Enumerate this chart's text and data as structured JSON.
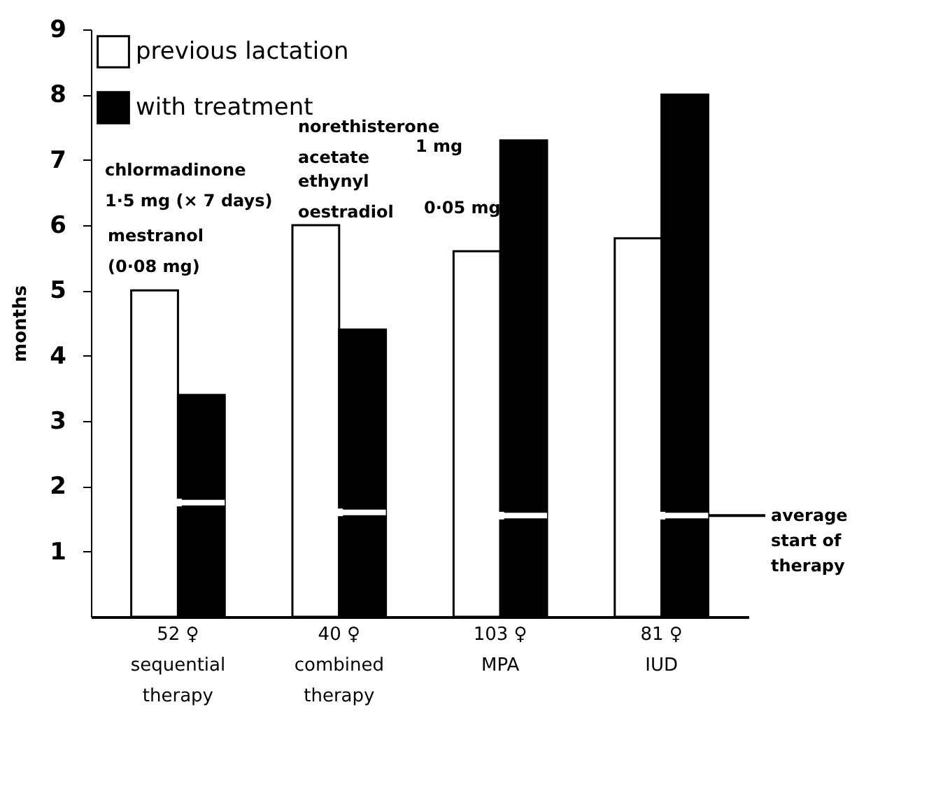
{
  "chart_data": {
    "type": "bar",
    "ylabel": "months",
    "categories": [
      "52 ♀\nsequential\ntherapy",
      "40 ♀\ncombined\ntherapy",
      "103 ♀\nMPA",
      "81 ♀\nIUD"
    ],
    "series": [
      {
        "name": "previous lactation",
        "color": "#ffffff",
        "values": [
          5.0,
          6.0,
          5.6,
          5.8
        ]
      },
      {
        "name": "with treatment",
        "color": "#000000",
        "values": [
          3.4,
          4.4,
          7.3,
          8.0
        ]
      },
      {
        "type": "scatter",
        "color": "#ffffff",
        "values": [
          1.75,
          1.6,
          1.55,
          1.55
        ]
      }
    ],
    "ylim": [
      0,
      9
    ],
    "yticks": [
      1,
      2,
      3,
      4,
      5,
      6,
      7,
      8,
      9
    ],
    "grid": false,
    "legend": "top left",
    "annotations": [
      "chlormadinone\n1·5 mg (× 7 days)",
      "mestranol\n(0·08 mg)",
      "norethisterone\nacetate",
      "1 mg",
      "ethynyl\noestradiol",
      "0·05 mg",
      {
        "text": "average\nstart of\ntherapy",
        "x": "81 ♀\nIUD",
        "y": 1.55
      }
    ]
  }
}
